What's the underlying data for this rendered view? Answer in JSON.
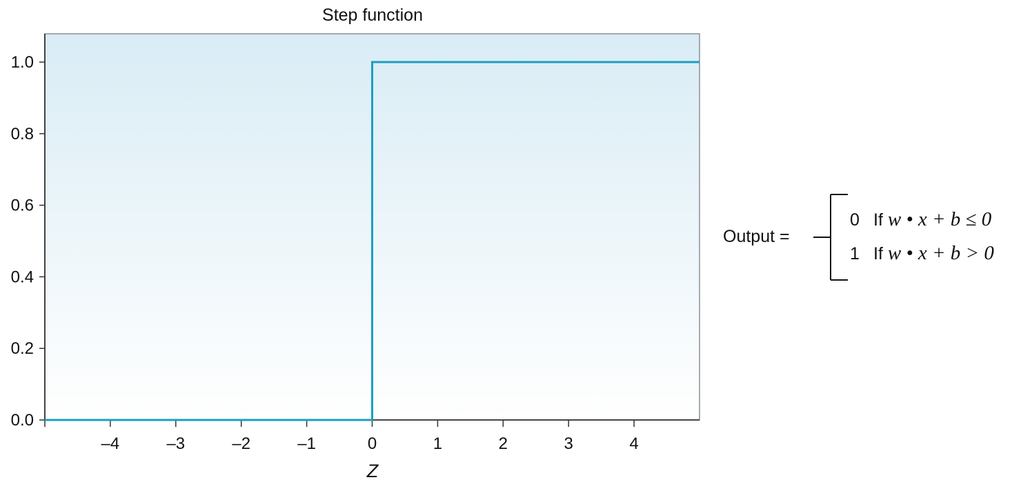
{
  "chart_data": {
    "type": "line",
    "title": "Step function",
    "xlabel": "Z",
    "ylabel": "",
    "xlim": [
      -5,
      5
    ],
    "ylim": [
      -0.0,
      1.08
    ],
    "xticks": [
      -4,
      -3,
      -2,
      -1,
      0,
      1,
      2,
      3,
      4
    ],
    "xtick_labels": [
      "–4",
      "–3",
      "–2",
      "–1",
      "0",
      "1",
      "2",
      "3",
      "4"
    ],
    "yticks": [
      0.0,
      0.2,
      0.4,
      0.6,
      0.8,
      1.0
    ],
    "ytick_labels": [
      "0.0",
      "0.2",
      "0.4",
      "0.6",
      "0.8",
      "1.0"
    ],
    "grid": false,
    "background_gradient": [
      "#d9ecf5",
      "#ffffff"
    ],
    "series": [
      {
        "color": "#1b9fc0",
        "x": [
          -5,
          0,
          0,
          5
        ],
        "y": [
          0,
          0,
          1,
          1
        ]
      }
    ]
  },
  "formula": {
    "lhs": "Output =",
    "cases": [
      {
        "value": "0",
        "word": "If",
        "condition": "w • x + b ≤  0"
      },
      {
        "value": "1",
        "word": "If",
        "condition": "w • x + b > 0"
      }
    ]
  }
}
